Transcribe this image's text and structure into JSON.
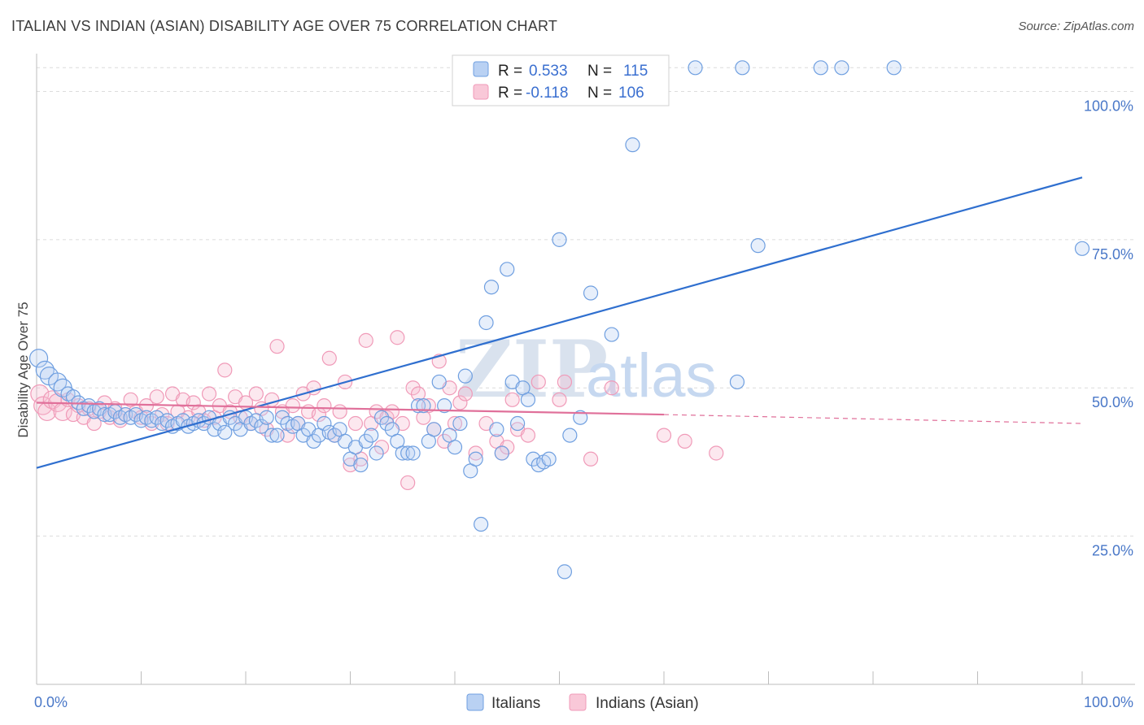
{
  "title": "ITALIAN VS INDIAN (ASIAN) DISABILITY AGE OVER 75 CORRELATION CHART",
  "source": "Source: ZipAtlas.com",
  "chart_data": {
    "type": "scatter",
    "title": "ITALIAN VS INDIAN (ASIAN) DISABILITY AGE OVER 75 CORRELATION CHART",
    "ylabel": "Disability Age Over 75",
    "xlabel": "",
    "xlim": [
      0,
      100
    ],
    "ylim": [
      0,
      105
    ],
    "x_tick_labels": [
      "0.0%",
      "100.0%"
    ],
    "y_tick_labels": [
      "25.0%",
      "50.0%",
      "75.0%",
      "100.0%"
    ],
    "y_ticks": [
      25,
      50,
      75,
      100
    ],
    "legend": {
      "rows": [
        {
          "r_label": "R =",
          "r_value": "0.533",
          "n_label": "N =",
          "n_value": "115"
        },
        {
          "r_label": "R =",
          "r_value": "-0.118",
          "n_label": "N =",
          "n_value": "106"
        }
      ]
    },
    "watermark": "ZIPatlas",
    "series": [
      {
        "name": "Italians",
        "color": "#6f9fe0",
        "line_color": "#2f6fcf",
        "trend": {
          "x": [
            0,
            100
          ],
          "y": [
            36.5,
            85.5
          ]
        },
        "points": [
          [
            0.2,
            55
          ],
          [
            0.8,
            53
          ],
          [
            1.2,
            52
          ],
          [
            2,
            51
          ],
          [
            2.5,
            50
          ],
          [
            3,
            49
          ],
          [
            3.5,
            48.5
          ],
          [
            4,
            47.5
          ],
          [
            4.5,
            46.5
          ],
          [
            5,
            47
          ],
          [
            5.5,
            46
          ],
          [
            6,
            46.5
          ],
          [
            6.5,
            45.5
          ],
          [
            7,
            45.5
          ],
          [
            7.5,
            46
          ],
          [
            8,
            45
          ],
          [
            8.5,
            45.5
          ],
          [
            9,
            45
          ],
          [
            9.5,
            45.5
          ],
          [
            10,
            44.5
          ],
          [
            10.5,
            45
          ],
          [
            11,
            44.5
          ],
          [
            11.5,
            45
          ],
          [
            12,
            44
          ],
          [
            12.5,
            44.5
          ],
          [
            13,
            43.5
          ],
          [
            13.5,
            44
          ],
          [
            14,
            44.5
          ],
          [
            14.5,
            43.5
          ],
          [
            15,
            44
          ],
          [
            15.5,
            44.5
          ],
          [
            16,
            44
          ],
          [
            16.5,
            45
          ],
          [
            17,
            43
          ],
          [
            17.5,
            44
          ],
          [
            18,
            42.5
          ],
          [
            18.5,
            45
          ],
          [
            19,
            44
          ],
          [
            19.5,
            43
          ],
          [
            20,
            45
          ],
          [
            20.5,
            44
          ],
          [
            21,
            44.5
          ],
          [
            21.5,
            43.5
          ],
          [
            22,
            45
          ],
          [
            22.5,
            42
          ],
          [
            23,
            42
          ],
          [
            23.5,
            45
          ],
          [
            24,
            44
          ],
          [
            24.5,
            43.5
          ],
          [
            25,
            44
          ],
          [
            25.5,
            42
          ],
          [
            26,
            43
          ],
          [
            26.5,
            41
          ],
          [
            27,
            42
          ],
          [
            27.5,
            44
          ],
          [
            28,
            42.5
          ],
          [
            28.5,
            42
          ],
          [
            29,
            43
          ],
          [
            29.5,
            41
          ],
          [
            30,
            38
          ],
          [
            30.5,
            40
          ],
          [
            31,
            37
          ],
          [
            31.5,
            41
          ],
          [
            32,
            42
          ],
          [
            32.5,
            39
          ],
          [
            33,
            45
          ],
          [
            33.5,
            44
          ],
          [
            34,
            43
          ],
          [
            34.5,
            41
          ],
          [
            35,
            39
          ],
          [
            35.5,
            39
          ],
          [
            36,
            39
          ],
          [
            36.5,
            47
          ],
          [
            37,
            47
          ],
          [
            37.5,
            41
          ],
          [
            38,
            43
          ],
          [
            38.5,
            51
          ],
          [
            39,
            47
          ],
          [
            39.5,
            42
          ],
          [
            40,
            40
          ],
          [
            40.5,
            44
          ],
          [
            41,
            52
          ],
          [
            41.5,
            36
          ],
          [
            42,
            38
          ],
          [
            42.5,
            27
          ],
          [
            43,
            61
          ],
          [
            43.5,
            67
          ],
          [
            44,
            43
          ],
          [
            44.5,
            39
          ],
          [
            45,
            70
          ],
          [
            45.5,
            51
          ],
          [
            46,
            44
          ],
          [
            46.5,
            50
          ],
          [
            47,
            48
          ],
          [
            47.5,
            38
          ],
          [
            48,
            37
          ],
          [
            48.5,
            37.5
          ],
          [
            49,
            38
          ],
          [
            50,
            75
          ],
          [
            50.5,
            19
          ],
          [
            51,
            42
          ],
          [
            52,
            45
          ],
          [
            53,
            66
          ],
          [
            55,
            59
          ],
          [
            57,
            91
          ],
          [
            63,
            104
          ],
          [
            67,
            51
          ],
          [
            67.5,
            104
          ],
          [
            69,
            74
          ],
          [
            75,
            104
          ],
          [
            77,
            104
          ],
          [
            82,
            104
          ],
          [
            100,
            73.5
          ]
        ]
      },
      {
        "name": "Indians (Asian)",
        "color": "#f09ab8",
        "line_color": "#e0709a",
        "trend": {
          "x": [
            0,
            60
          ],
          "y": [
            47.5,
            45.5
          ]
        },
        "trend_dashed": {
          "x": [
            60,
            100
          ],
          "y": [
            45.5,
            44.0
          ]
        },
        "points": [
          [
            0.3,
            49
          ],
          [
            0.6,
            47
          ],
          [
            1,
            46
          ],
          [
            1.5,
            48
          ],
          [
            2,
            47.5
          ],
          [
            2.5,
            46
          ],
          [
            3,
            48
          ],
          [
            3.5,
            45.5
          ],
          [
            4,
            47
          ],
          [
            4.5,
            45
          ],
          [
            5,
            46.5
          ],
          [
            5.5,
            44
          ],
          [
            6,
            46
          ],
          [
            6.5,
            47.5
          ],
          [
            7,
            45
          ],
          [
            7.5,
            46.5
          ],
          [
            8,
            44.5
          ],
          [
            8.5,
            45.5
          ],
          [
            9,
            48
          ],
          [
            9.5,
            46
          ],
          [
            10,
            45
          ],
          [
            10.5,
            47
          ],
          [
            11,
            44
          ],
          [
            11.5,
            48.5
          ],
          [
            12,
            45.5
          ],
          [
            12.5,
            44
          ],
          [
            13,
            49
          ],
          [
            13.5,
            46
          ],
          [
            14,
            48
          ],
          [
            14.5,
            45
          ],
          [
            15,
            47.5
          ],
          [
            15.5,
            46
          ],
          [
            16,
            44.5
          ],
          [
            16.5,
            49
          ],
          [
            17,
            45
          ],
          [
            17.5,
            47
          ],
          [
            18,
            53
          ],
          [
            18.5,
            46
          ],
          [
            19,
            48.5
          ],
          [
            19.5,
            45
          ],
          [
            20,
            47.5
          ],
          [
            20.5,
            44
          ],
          [
            21,
            49
          ],
          [
            21.5,
            46.5
          ],
          [
            22,
            43
          ],
          [
            22.5,
            48
          ],
          [
            23,
            57
          ],
          [
            23.5,
            46
          ],
          [
            24,
            42
          ],
          [
            24.5,
            47
          ],
          [
            25,
            44
          ],
          [
            25.5,
            49
          ],
          [
            26,
            46
          ],
          [
            26.5,
            50
          ],
          [
            27,
            45.5
          ],
          [
            27.5,
            47
          ],
          [
            28,
            55
          ],
          [
            28.5,
            42
          ],
          [
            29,
            46
          ],
          [
            29.5,
            51
          ],
          [
            30,
            37
          ],
          [
            30.5,
            44
          ],
          [
            31,
            38
          ],
          [
            31.5,
            58
          ],
          [
            32,
            44
          ],
          [
            32.5,
            46
          ],
          [
            33,
            40
          ],
          [
            33.5,
            45
          ],
          [
            34,
            46
          ],
          [
            34.5,
            58.5
          ],
          [
            35,
            44
          ],
          [
            35.5,
            34
          ],
          [
            36,
            50
          ],
          [
            36.5,
            49
          ],
          [
            37,
            45
          ],
          [
            37.5,
            47
          ],
          [
            38,
            43
          ],
          [
            38.5,
            54.5
          ],
          [
            39,
            41
          ],
          [
            39.5,
            50
          ],
          [
            40,
            44
          ],
          [
            40.5,
            47.5
          ],
          [
            41,
            49
          ],
          [
            42,
            39
          ],
          [
            43,
            44
          ],
          [
            44,
            41
          ],
          [
            44.5,
            39
          ],
          [
            45,
            40
          ],
          [
            45.5,
            48
          ],
          [
            46,
            43
          ],
          [
            47,
            42
          ],
          [
            48,
            51
          ],
          [
            50,
            48
          ],
          [
            50.5,
            51
          ],
          [
            53,
            38
          ],
          [
            55,
            50
          ],
          [
            60,
            42
          ],
          [
            62,
            41
          ],
          [
            65,
            39
          ]
        ]
      }
    ]
  },
  "bottom_legend": [
    {
      "label": "Italians",
      "color": "#6f9fe0"
    },
    {
      "label": "Indians (Asian)",
      "color": "#f09ab8"
    }
  ]
}
